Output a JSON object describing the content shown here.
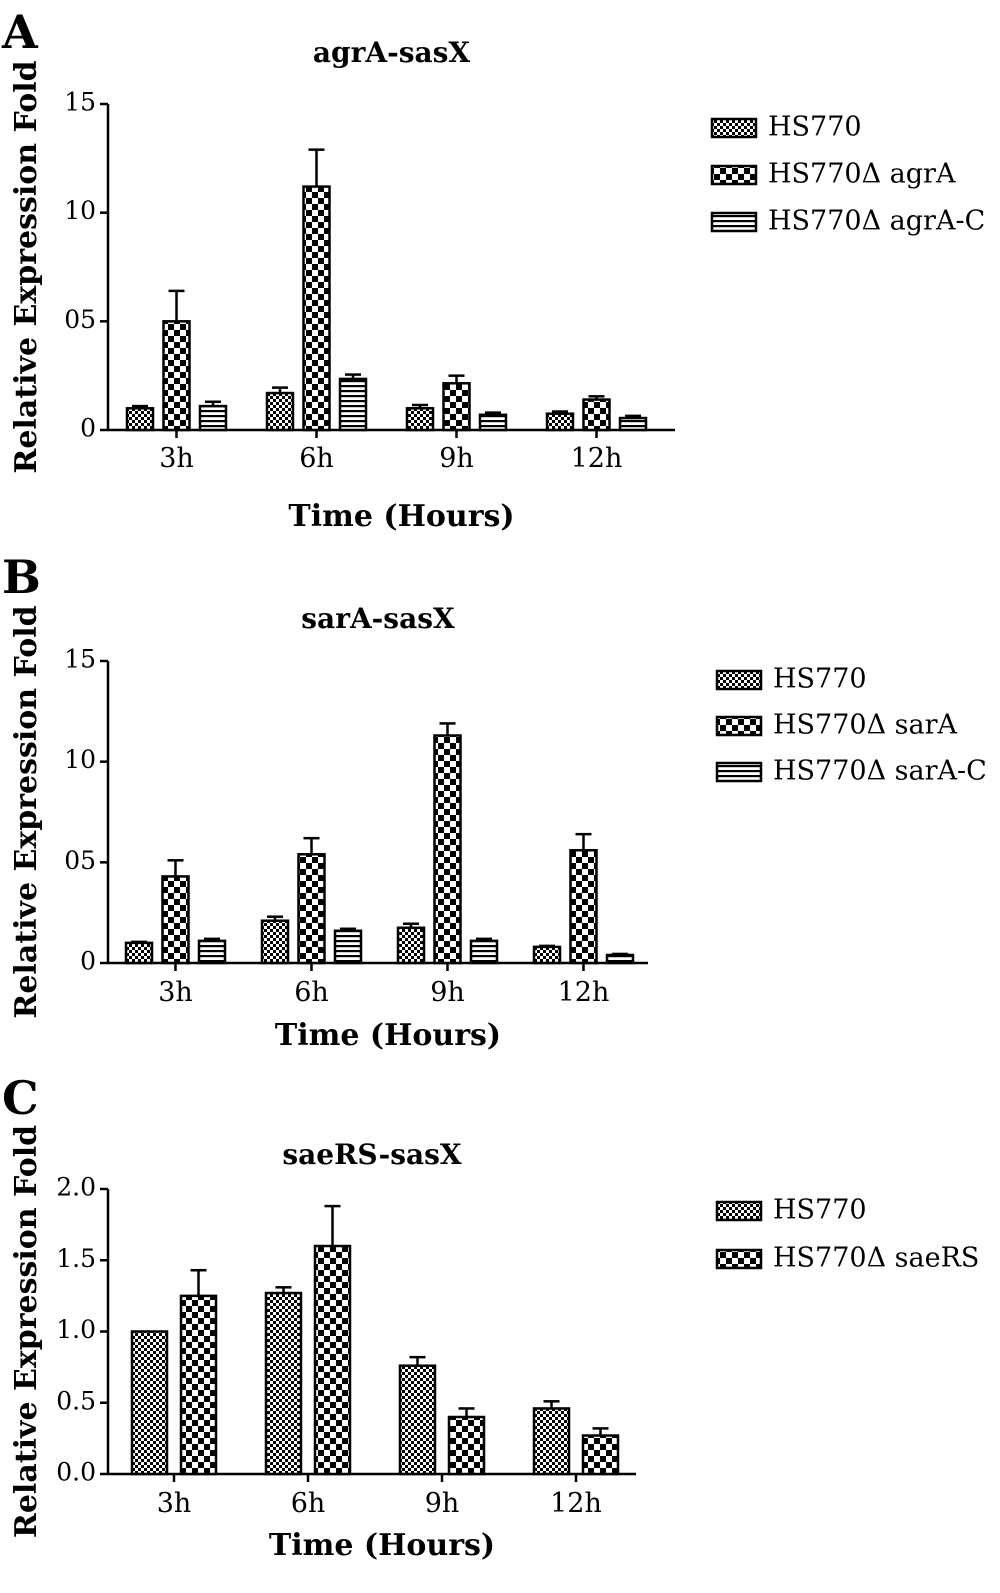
{
  "chart_data": [
    {
      "type": "bar",
      "panel": "A",
      "title": "agrA-sasX",
      "xlabel": "Time (Hours)",
      "ylabel": "Relative Expression Fold",
      "ylim": [
        0,
        15
      ],
      "ytick_values": [
        0,
        5,
        10,
        15
      ],
      "ytick_labels": [
        "0",
        "05",
        "10",
        "15"
      ],
      "categories": [
        "3h",
        "6h",
        "9h",
        "12h"
      ],
      "series": [
        {
          "name": "HS770",
          "pattern": "fine-check",
          "values": [
            1.0,
            1.7,
            1.0,
            0.75
          ],
          "errors": [
            0.1,
            0.25,
            0.15,
            0.1
          ]
        },
        {
          "name": "HS770Δ agrA",
          "pattern": "coarse-check",
          "values": [
            5.0,
            11.2,
            2.15,
            1.4
          ],
          "errors": [
            1.4,
            1.7,
            0.35,
            0.15
          ]
        },
        {
          "name": "HS770Δ agrA-C",
          "pattern": "stripes",
          "values": [
            1.1,
            2.35,
            0.7,
            0.55
          ],
          "errors": [
            0.2,
            0.2,
            0.1,
            0.1
          ]
        }
      ],
      "legend_position": "right"
    },
    {
      "type": "bar",
      "panel": "B",
      "title": "sarA-sasX",
      "xlabel": "Time (Hours)",
      "ylabel": "Relative Expression Fold",
      "ylim": [
        0,
        15
      ],
      "ytick_values": [
        0,
        5,
        10,
        15
      ],
      "ytick_labels": [
        "0",
        "05",
        "10",
        "15"
      ],
      "categories": [
        "3h",
        "6h",
        "9h",
        "12h"
      ],
      "series": [
        {
          "name": "HS770",
          "pattern": "fine-check",
          "values": [
            1.0,
            2.1,
            1.75,
            0.8
          ],
          "errors": [
            0.05,
            0.2,
            0.2,
            0.05
          ]
        },
        {
          "name": "HS770Δ sarA",
          "pattern": "coarse-check",
          "values": [
            4.3,
            5.4,
            11.3,
            5.6
          ],
          "errors": [
            0.8,
            0.8,
            0.6,
            0.8
          ]
        },
        {
          "name": "HS770Δ sarA-C",
          "pattern": "stripes",
          "values": [
            1.1,
            1.6,
            1.1,
            0.4
          ],
          "errors": [
            0.1,
            0.1,
            0.1,
            0.05
          ]
        }
      ],
      "legend_position": "right"
    },
    {
      "type": "bar",
      "panel": "C",
      "title": "saeRS-sasX",
      "xlabel": "Time (Hours)",
      "ylabel": "Relative Expression Fold",
      "ylim": [
        0,
        2.0
      ],
      "ytick_values": [
        0,
        0.5,
        1.0,
        1.5,
        2.0
      ],
      "ytick_labels": [
        "0.0",
        "0.5",
        "1.0",
        "1.5",
        "2.0"
      ],
      "categories": [
        "3h",
        "6h",
        "9h",
        "12h"
      ],
      "series": [
        {
          "name": "HS770",
          "pattern": "fine-check",
          "values": [
            1.0,
            1.27,
            0.76,
            0.46
          ],
          "errors": [
            0,
            0.04,
            0.06,
            0.05
          ]
        },
        {
          "name": "HS770Δ saeRS",
          "pattern": "coarse-check",
          "values": [
            1.25,
            1.6,
            0.4,
            0.27
          ],
          "errors": [
            0.18,
            0.28,
            0.06,
            0.05
          ]
        }
      ],
      "legend_position": "right"
    }
  ]
}
